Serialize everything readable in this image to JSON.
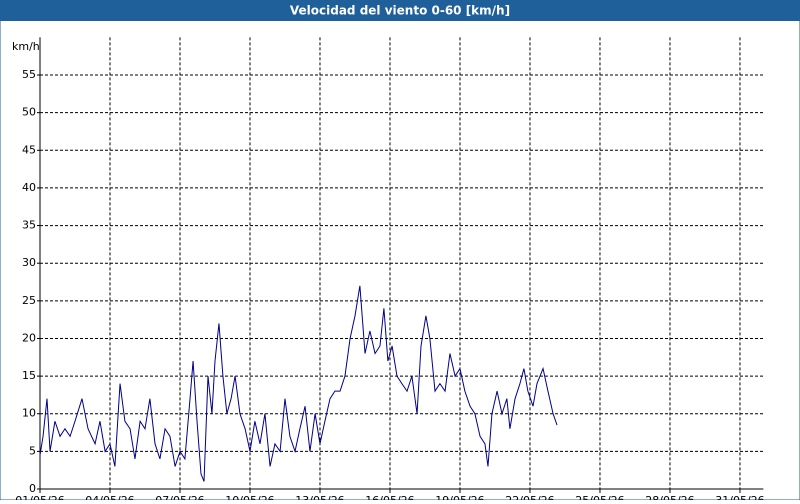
{
  "chart_data": {
    "type": "line",
    "title": "Velocidad del viento 0-60 [km/h]",
    "y_label": "km/h",
    "x": [
      0,
      0.13,
      0.3,
      0.43,
      0.64,
      0.86,
      1.07,
      1.29,
      1.5,
      1.8,
      2.06,
      2.36,
      2.57,
      2.79,
      3,
      3.21,
      3.43,
      3.64,
      3.86,
      4.07,
      4.29,
      4.5,
      4.71,
      4.93,
      5.14,
      5.36,
      5.57,
      5.79,
      6,
      6.21,
      6.43,
      6.56,
      6.73,
      6.9,
      7.03,
      7.2,
      7.37,
      7.5,
      7.67,
      7.84,
      8.01,
      8.19,
      8.36,
      8.57,
      8.79,
      9,
      9.21,
      9.43,
      9.64,
      9.86,
      10.07,
      10.29,
      10.5,
      10.71,
      10.93,
      11.14,
      11.36,
      11.57,
      11.79,
      12,
      12.21,
      12.43,
      12.64,
      12.86,
      13.07,
      13.29,
      13.5,
      13.71,
      13.93,
      14.14,
      14.36,
      14.57,
      14.74,
      14.91,
      15.09,
      15.3,
      15.51,
      15.73,
      15.94,
      16.16,
      16.33,
      16.54,
      16.71,
      16.93,
      17.14,
      17.36,
      17.57,
      17.79,
      18,
      18.21,
      18.43,
      18.64,
      18.86,
      19.07,
      19.2,
      19.37,
      19.59,
      19.8,
      20.01,
      20.14,
      20.36,
      20.57,
      20.74,
      20.91,
      21.13,
      21.3,
      21.56,
      21.77,
      21.99,
      22.16
    ],
    "series": [
      {
        "name": "Velocidad del viento",
        "color": "#00008b",
        "values": [
          4.5,
          7,
          12,
          5,
          9,
          7,
          8,
          7,
          9,
          12,
          8,
          6,
          9,
          5,
          6,
          3,
          14,
          9,
          8,
          4,
          9,
          8,
          12,
          6,
          4,
          8,
          7,
          3,
          5,
          4,
          12,
          17,
          9,
          2,
          1,
          15,
          10,
          17,
          22,
          15,
          10,
          12,
          15,
          10,
          8,
          5,
          9,
          6,
          10,
          3,
          6,
          5,
          12,
          7,
          5,
          8,
          11,
          5,
          10,
          6,
          9,
          12,
          13,
          13,
          15,
          20,
          23,
          27,
          18,
          21,
          18,
          19,
          24,
          17,
          19,
          15,
          14,
          13,
          15,
          10,
          19,
          23,
          20,
          13,
          14,
          13,
          18,
          15,
          16,
          13,
          11,
          10,
          7,
          6,
          3,
          10,
          13,
          10,
          12,
          8,
          12,
          14,
          16,
          13,
          11,
          14,
          16,
          13,
          10,
          8.5
        ]
      }
    ],
    "xlim": [
      0,
      31
    ],
    "xticks": [
      {
        "value": 0,
        "label": "01/05/26"
      },
      {
        "value": 3,
        "label": "04/05/26"
      },
      {
        "value": 6,
        "label": "07/05/26"
      },
      {
        "value": 9,
        "label": "10/05/26"
      },
      {
        "value": 12,
        "label": "13/05/26"
      },
      {
        "value": 15,
        "label": "16/05/26"
      },
      {
        "value": 18,
        "label": "19/05/26"
      },
      {
        "value": 21,
        "label": "22/05/26"
      },
      {
        "value": 24,
        "label": "25/05/26"
      },
      {
        "value": 27,
        "label": "28/05/26"
      },
      {
        "value": 30,
        "label": "31/05/26"
      }
    ],
    "ylim": [
      0,
      60
    ],
    "yticks": [
      0,
      5,
      10,
      15,
      20,
      25,
      30,
      35,
      40,
      45,
      50,
      55
    ],
    "grid": true
  }
}
